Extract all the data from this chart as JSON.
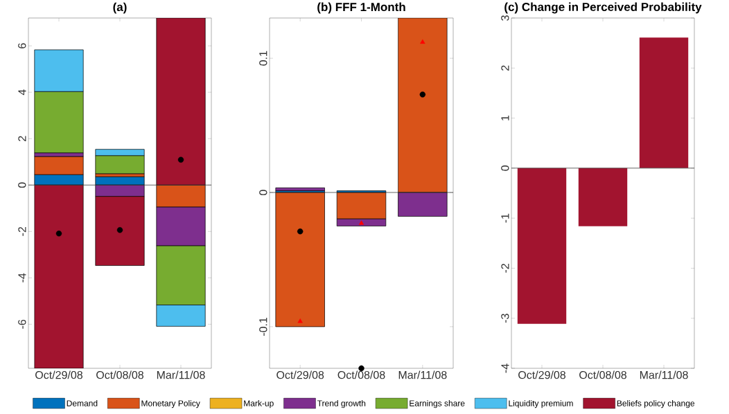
{
  "chart_data": [
    {
      "type": "bar",
      "title": "(a)",
      "stacked": true,
      "legend": "bottom",
      "categories": [
        "Oct/29/08",
        "Oct/08/08",
        "Mar/11/08"
      ],
      "ylim": [
        -7.9,
        7.2
      ],
      "yticks": [
        -6,
        -4,
        -2,
        0,
        2,
        4,
        6
      ],
      "ref_lines": [
        {
          "axis": "y",
          "value": 0,
          "color": "#404040"
        }
      ],
      "series": [
        {
          "name": "Demand",
          "color": "#0072bd",
          "values": [
            0.45,
            0.36,
            0
          ]
        },
        {
          "name": "Monetary Policy",
          "color": "#d95319",
          "values": [
            0.78,
            0.13,
            -0.95
          ]
        },
        {
          "name": "Mark-up",
          "color": "#edb120",
          "values": [
            0,
            0,
            0
          ]
        },
        {
          "name": "Trend growth",
          "color": "#7e2f8e",
          "values": [
            0.16,
            -0.49,
            -1.67
          ]
        },
        {
          "name": "Earnings share",
          "color": "#77ac30",
          "values": [
            2.64,
            0.78,
            -2.55
          ]
        },
        {
          "name": "Liquidity premium",
          "color": "#4dbeee",
          "values": [
            1.8,
            0.27,
            -0.92
          ]
        },
        {
          "name": "Beliefs policy change",
          "color": "#a2142f",
          "values": [
            -7.9,
            -2.98,
            7.2
          ]
        },
        {
          "type": "scatter",
          "marker": "circle",
          "color": "#000000",
          "x": [
            "Oct/29/08",
            "Oct/08/08",
            "Mar/11/08"
          ],
          "values": [
            -2.09,
            -1.94,
            1.09
          ]
        }
      ]
    },
    {
      "type": "bar",
      "title": "(b) FFF 1-Month",
      "stacked": true,
      "categories": [
        "Oct/29/08",
        "Oct/08/08",
        "Mar/11/08"
      ],
      "ylim": [
        -0.131,
        0.13
      ],
      "yticks": [
        -0.1,
        0,
        0.1
      ],
      "ref_lines": [
        {
          "axis": "y",
          "value": 0,
          "color": "#404040"
        }
      ],
      "series": [
        {
          "color": "#0072bd",
          "values": [
            0.0013,
            0.0013,
            0
          ]
        },
        {
          "color": "#d95319",
          "values": [
            -0.1,
            -0.0197,
            0.13
          ]
        },
        {
          "color": "#7e2f8e",
          "values": [
            0.0022,
            -0.0053,
            -0.0178
          ]
        },
        {
          "type": "scatter",
          "marker": "circle",
          "color": "#000000",
          "x": [
            "Oct/29/08",
            "Oct/08/08",
            "Mar/11/08"
          ],
          "values": [
            -0.029,
            -0.131,
            0.073
          ]
        },
        {
          "type": "scatter",
          "marker": "triangle",
          "color": "#ff0000",
          "x": [
            "Oct/29/08",
            "Oct/08/08",
            "Mar/11/08"
          ],
          "values": [
            -0.096,
            -0.023,
            0.112
          ]
        }
      ]
    },
    {
      "type": "bar",
      "title": "(c) Change in Perceived Probability",
      "categories": [
        "Oct/29/08",
        "Oct/08/08",
        "Mar/11/08"
      ],
      "ylim": [
        -4,
        3
      ],
      "yticks": [
        -4,
        -3,
        -2,
        -1,
        0,
        1,
        2,
        3
      ],
      "ref_lines": [
        {
          "axis": "y",
          "value": 0,
          "color": "#404040"
        }
      ],
      "series": [
        {
          "color": "#a2142f",
          "values": [
            -3.11,
            -1.16,
            2.61
          ]
        }
      ]
    }
  ]
}
